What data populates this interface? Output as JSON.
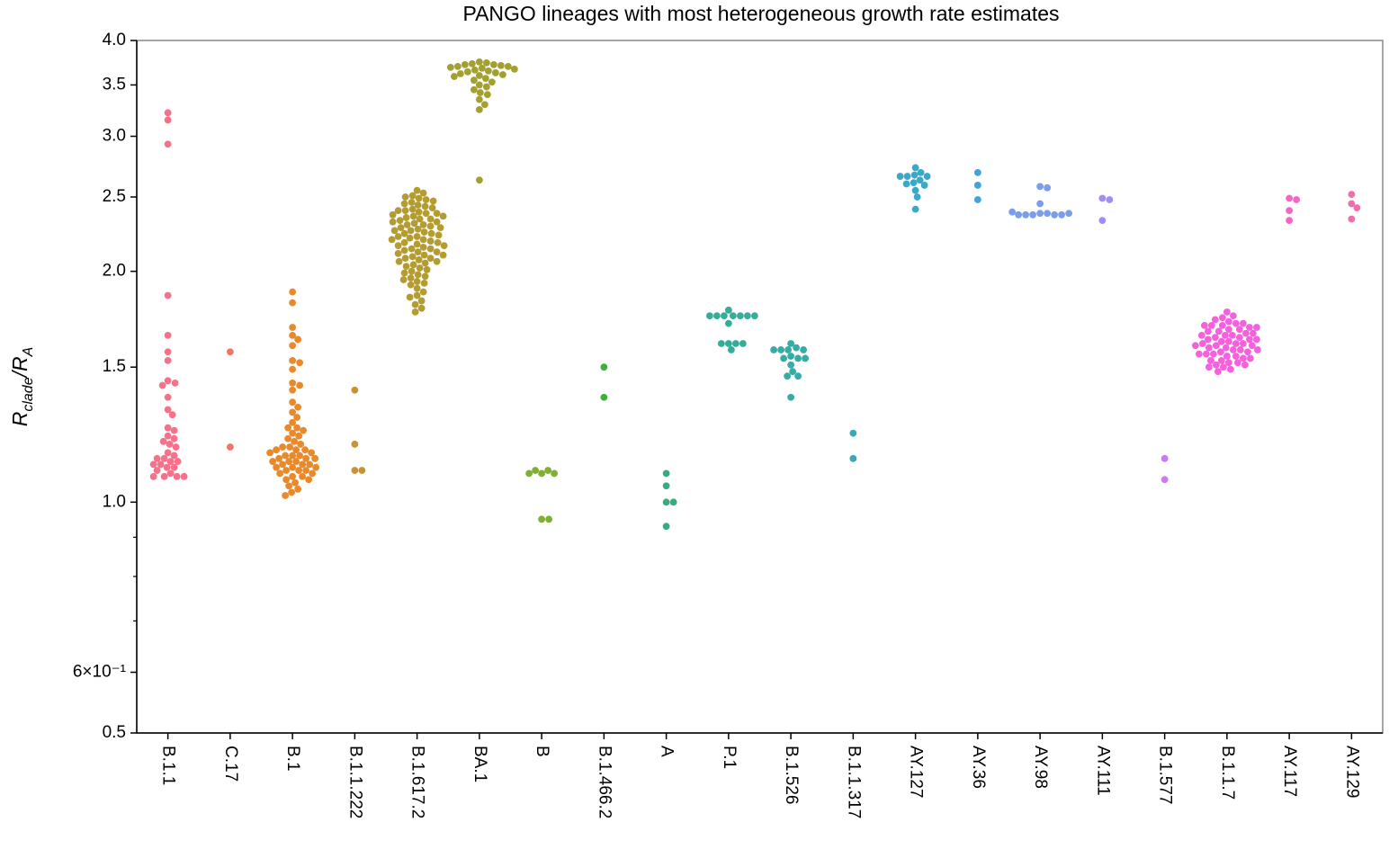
{
  "chart_data": {
    "type": "swarm",
    "title": "PANGO lineages with most heterogeneous growth rate estimates",
    "ylabel": [
      "R",
      "clade",
      "/R",
      "A"
    ],
    "log_y": true,
    "ylim": [
      0.5,
      4.0
    ],
    "yticks": [
      0.5,
      {
        "value": 0.6,
        "label": "6×10⁻¹"
      },
      {
        "value": 1,
        "label": "1.0"
      },
      1.5,
      {
        "value": 2,
        "label": "2.0"
      },
      2.5,
      {
        "value": 3,
        "label": "3.0"
      },
      3.5,
      {
        "value": 4,
        "label": "4.0"
      }
    ],
    "yminorticks": [
      0.7,
      0.8,
      0.9
    ],
    "series": [
      {
        "name": "B.1.1",
        "color": "#f77189",
        "values": [
          3.22,
          3.15,
          2.93,
          1.86,
          1.65,
          1.57,
          1.53,
          1.44,
          1.43,
          1.42,
          1.37,
          1.32,
          1.3,
          1.25,
          1.24,
          1.22,
          1.21,
          1.2,
          1.19,
          1.18,
          1.16,
          1.15,
          1.14,
          1.14,
          1.13,
          1.13,
          1.12,
          1.12,
          1.11,
          1.11,
          1.1,
          1.09,
          1.08,
          1.08,
          1.08,
          1.08
        ]
      },
      {
        "name": "C.17",
        "color": "#f2756a",
        "values": [
          1.57,
          1.18
        ]
      },
      {
        "name": "B.1",
        "color": "#e8892c",
        "values": [
          1.88,
          1.82,
          1.69,
          1.65,
          1.63,
          1.6,
          1.53,
          1.52,
          1.49,
          1.43,
          1.42,
          1.4,
          1.35,
          1.33,
          1.31,
          1.29,
          1.27,
          1.25,
          1.25,
          1.24,
          1.23,
          1.22,
          1.21,
          1.2,
          1.19,
          1.18,
          1.18,
          1.17,
          1.17,
          1.17,
          1.16,
          1.16,
          1.15,
          1.15,
          1.15,
          1.14,
          1.14,
          1.14,
          1.13,
          1.13,
          1.13,
          1.12,
          1.12,
          1.12,
          1.11,
          1.11,
          1.11,
          1.1,
          1.1,
          1.1,
          1.09,
          1.09,
          1.08,
          1.08,
          1.07,
          1.07,
          1.06,
          1.05,
          1.04,
          1.03,
          1.02
        ]
      },
      {
        "name": "B.1.1.222",
        "color": "#cc9230",
        "values": [
          1.4,
          1.19,
          1.1,
          1.1
        ]
      },
      {
        "name": "B.1.617.2",
        "color": "#b49c30",
        "values": [
          2.55,
          2.53,
          2.51,
          2.5,
          2.49,
          2.48,
          2.47,
          2.46,
          2.45,
          2.44,
          2.43,
          2.42,
          2.41,
          2.4,
          2.4,
          2.39,
          2.38,
          2.38,
          2.37,
          2.36,
          2.36,
          2.35,
          2.34,
          2.34,
          2.33,
          2.32,
          2.32,
          2.31,
          2.3,
          2.3,
          2.29,
          2.28,
          2.28,
          2.27,
          2.26,
          2.26,
          2.25,
          2.24,
          2.24,
          2.23,
          2.22,
          2.22,
          2.21,
          2.2,
          2.2,
          2.19,
          2.18,
          2.18,
          2.17,
          2.16,
          2.16,
          2.15,
          2.14,
          2.14,
          2.13,
          2.12,
          2.12,
          2.11,
          2.1,
          2.1,
          2.09,
          2.08,
          2.08,
          2.07,
          2.06,
          2.06,
          2.05,
          2.04,
          2.03,
          2.02,
          2.01,
          2.0,
          1.99,
          1.98,
          1.97,
          1.96,
          1.95,
          1.94,
          1.93,
          1.92,
          1.9,
          1.88,
          1.86,
          1.85,
          1.83,
          1.81,
          1.79,
          1.77
        ]
      },
      {
        "name": "BA.1",
        "color": "#a4a02f",
        "values": [
          3.75,
          3.74,
          3.73,
          3.72,
          3.72,
          3.71,
          3.7,
          3.7,
          3.69,
          3.68,
          3.67,
          3.66,
          3.65,
          3.64,
          3.63,
          3.62,
          3.61,
          3.6,
          3.59,
          3.57,
          3.55,
          3.53,
          3.5,
          3.48,
          3.45,
          3.42,
          3.4,
          3.35,
          3.3,
          3.25,
          2.63
        ]
      },
      {
        "name": "B",
        "color": "#7fb031",
        "values": [
          1.09,
          1.1,
          1.1,
          1.09,
          1.09,
          0.95,
          0.95
        ]
      },
      {
        "name": "B.1.466.2",
        "color": "#3bb03a",
        "values": [
          1.5,
          1.37
        ]
      },
      {
        "name": "A",
        "color": "#35ae7f",
        "values": [
          1.09,
          1.05,
          1.0,
          1.0,
          0.93
        ]
      },
      {
        "name": "P.1",
        "color": "#36ad9a",
        "values": [
          1.78,
          1.75,
          1.75,
          1.75,
          1.75,
          1.75,
          1.75,
          1.75,
          1.71,
          1.61,
          1.61,
          1.61,
          1.61,
          1.58
        ]
      },
      {
        "name": "B.1.526",
        "color": "#37aba5",
        "values": [
          1.61,
          1.59,
          1.58,
          1.58,
          1.58,
          1.58,
          1.55,
          1.54,
          1.54,
          1.54,
          1.51,
          1.48,
          1.46,
          1.46,
          1.37
        ]
      },
      {
        "name": "B.1.1.317",
        "color": "#38a9b5",
        "values": [
          1.23,
          1.14
        ]
      },
      {
        "name": "AY.127",
        "color": "#3aa8c8",
        "values": [
          2.73,
          2.69,
          2.67,
          2.66,
          2.66,
          2.66,
          2.63,
          2.61,
          2.6,
          2.59,
          2.55,
          2.5,
          2.41
        ]
      },
      {
        "name": "AY.36",
        "color": "#3ca5dc",
        "values": [
          2.69,
          2.59,
          2.48
        ]
      },
      {
        "name": "AY.98",
        "color": "#7c9ced",
        "values": [
          2.58,
          2.57,
          2.45,
          2.38,
          2.38,
          2.37,
          2.37,
          2.37,
          2.37,
          2.37,
          2.38,
          2.39
        ]
      },
      {
        "name": "AY.111",
        "color": "#a48cf4",
        "values": [
          2.49,
          2.48,
          2.33
        ]
      },
      {
        "name": "B.1.577",
        "color": "#cc7af4",
        "values": [
          1.14,
          1.07
        ]
      },
      {
        "name": "B.1.1.7",
        "color": "#f561dd",
        "values": [
          1.77,
          1.75,
          1.74,
          1.73,
          1.72,
          1.71,
          1.71,
          1.7,
          1.7,
          1.7,
          1.69,
          1.69,
          1.68,
          1.68,
          1.67,
          1.67,
          1.66,
          1.66,
          1.65,
          1.65,
          1.65,
          1.64,
          1.64,
          1.63,
          1.63,
          1.63,
          1.62,
          1.62,
          1.61,
          1.61,
          1.61,
          1.6,
          1.6,
          1.6,
          1.59,
          1.59,
          1.58,
          1.58,
          1.58,
          1.57,
          1.57,
          1.56,
          1.56,
          1.56,
          1.55,
          1.55,
          1.54,
          1.54,
          1.53,
          1.53,
          1.52,
          1.52,
          1.51,
          1.51,
          1.5,
          1.5,
          1.49,
          1.48
        ]
      },
      {
        "name": "AY.117",
        "color": "#f565c6",
        "values": [
          2.49,
          2.48,
          2.4,
          2.33
        ]
      },
      {
        "name": "AY.129",
        "color": "#f66bad",
        "values": [
          2.52,
          2.45,
          2.42,
          2.34
        ]
      }
    ]
  }
}
